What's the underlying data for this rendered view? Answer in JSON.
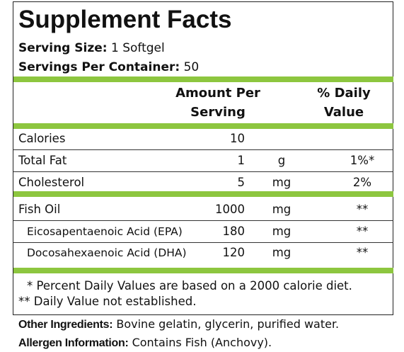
{
  "header": {
    "title": "Supplement Facts"
  },
  "serving_size": {
    "label": "Serving Size:",
    "value": "1 Softgel"
  },
  "servings_per_container": {
    "label": "Servings Per Container:",
    "value": "50"
  },
  "table": {
    "headers": {
      "amount": "Amount Per Serving",
      "daily_value": "% Daily Value"
    },
    "rows": [
      {
        "name": "Calories",
        "amount": 10
      },
      {
        "name": "Total Fat",
        "amount": 1,
        "unit": "g",
        "dv": "1%*"
      },
      {
        "name": "Cholesterol",
        "amount": 5,
        "unit": "mg",
        "dv": "2%"
      },
      {
        "name": "Fish Oil",
        "amount": 1000,
        "unit": "mg",
        "dv": "**"
      },
      {
        "name": "Eicosapentaenoic Acid (EPA)",
        "amount": 180,
        "unit": "mg",
        "dv": "**"
      },
      {
        "name": "Docosahexaenoic Acid (DHA)",
        "amount": 120,
        "unit": "mg",
        "dv": "**"
      }
    ]
  },
  "footnotes": [
    "* Percent Daily Values are based on a 2000 calorie diet.",
    "** Daily Value not established."
  ],
  "other_ingredients": {
    "label": "Other Ingredients:",
    "value": "Bovine gelatin, glycerin, purified water."
  },
  "allergen_information": {
    "label": "Allergen Information:",
    "value": "Contains Fish (Anchovy)."
  }
}
